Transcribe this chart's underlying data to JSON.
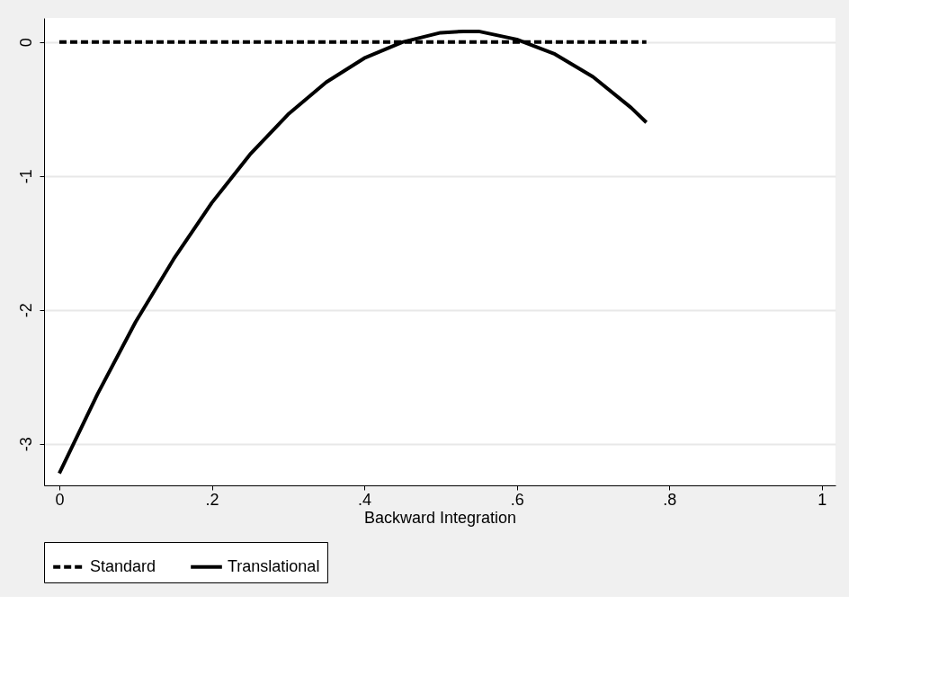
{
  "chart_data": {
    "type": "line",
    "xlabel": "Backward Integration",
    "xlim": [
      -0.02,
      1.018
    ],
    "ylim": [
      -3.31,
      0.18
    ],
    "xticks": [
      0,
      {
        "value": 0.2,
        "label": ".2"
      },
      {
        "value": 0.4,
        "label": ".4"
      },
      {
        "value": 0.6,
        "label": ".6"
      },
      {
        "value": 0.8,
        "label": ".8"
      },
      1
    ],
    "yticks": [
      -3,
      -2,
      -1,
      0
    ],
    "grid": "y",
    "legend": "bottom",
    "series": [
      {
        "name": "Standard",
        "color": "#000000",
        "line_style": "dashed",
        "x": [
          0,
          0.77
        ],
        "values": [
          0,
          0
        ]
      },
      {
        "name": "Translational",
        "color": "#000000",
        "line_style": "solid",
        "x": [
          0,
          0.05,
          0.1,
          0.15,
          0.2,
          0.25,
          0.3,
          0.35,
          0.4,
          0.45,
          0.5,
          0.53,
          0.55,
          0.6,
          0.65,
          0.7,
          0.75,
          0.77
        ],
        "values": [
          -3.22,
          -2.63,
          -2.09,
          -1.62,
          -1.2,
          -0.84,
          -0.54,
          -0.3,
          -0.12,
          0.0,
          0.07,
          0.08,
          0.08,
          0.02,
          -0.09,
          -0.26,
          -0.49,
          -0.6
        ]
      }
    ]
  }
}
